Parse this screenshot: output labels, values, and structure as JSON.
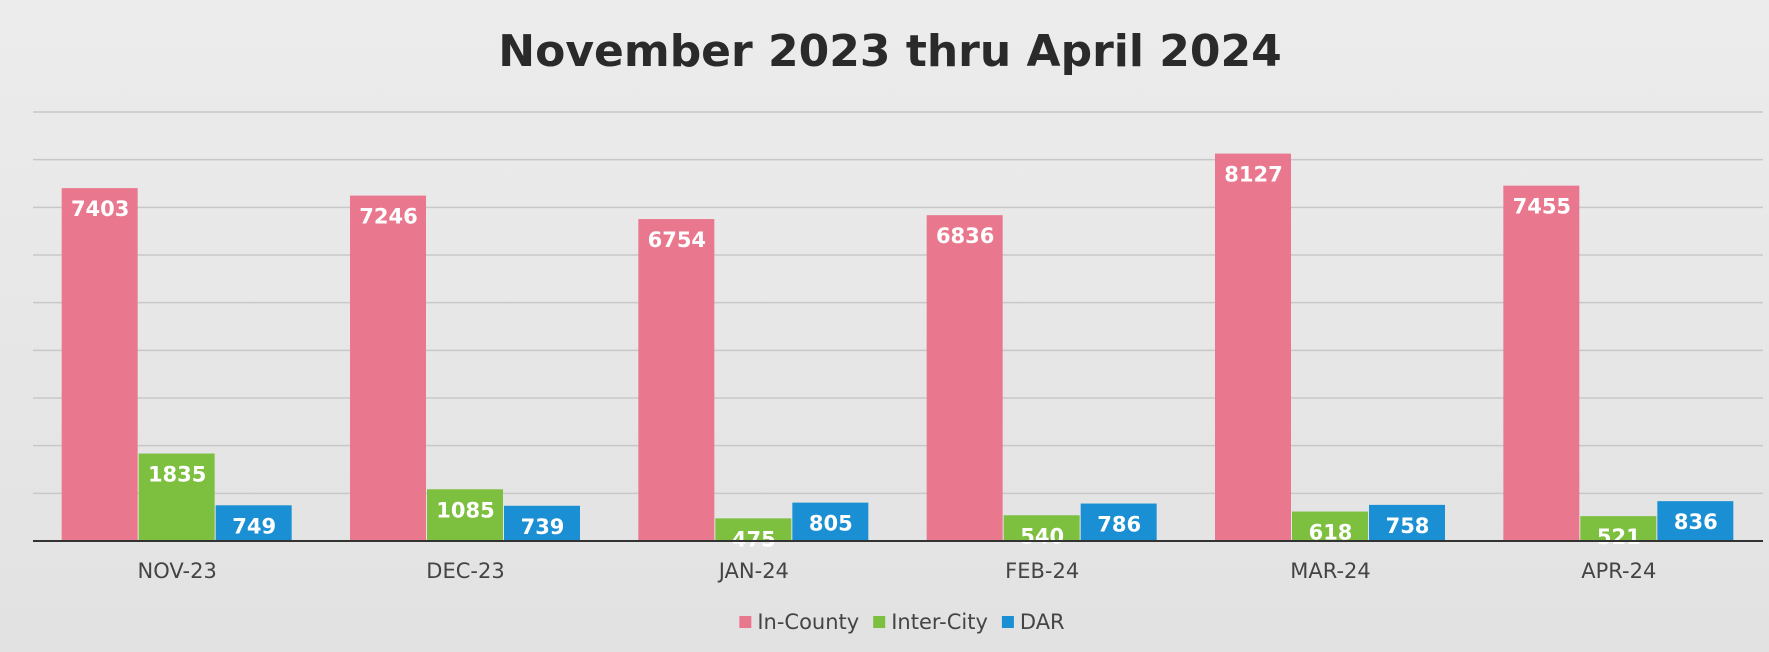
{
  "chart_data": {
    "type": "bar",
    "title": "November 2023 thru April 2024",
    "categories": [
      "NOV-23",
      "DEC-23",
      "JAN-24",
      "FEB-24",
      "MAR-24",
      "APR-24"
    ],
    "series": [
      {
        "name": "In-County",
        "color": "#e9788f",
        "values": [
          7403,
          7246,
          6754,
          6836,
          8127,
          7455
        ]
      },
      {
        "name": "Inter-City",
        "color": "#7dbf3f",
        "values": [
          1835,
          1085,
          475,
          540,
          618,
          521
        ]
      },
      {
        "name": "DAR",
        "color": "#1b8fd3",
        "values": [
          749,
          739,
          805,
          786,
          758,
          836
        ]
      }
    ],
    "ylim": [
      0,
      9000
    ],
    "yticks": [
      0,
      1000,
      2000,
      3000,
      4000,
      5000,
      6000,
      7000,
      8000,
      9000
    ],
    "grid": true,
    "legend": "bottom"
  }
}
